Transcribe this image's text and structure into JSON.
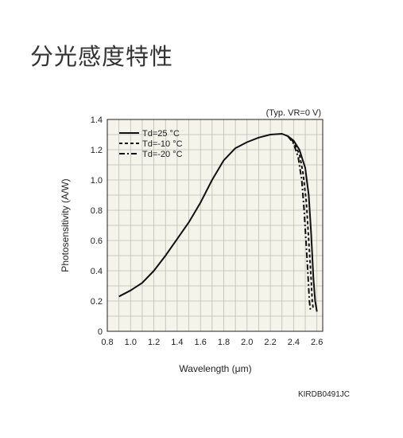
{
  "page": {
    "title": "分光感度特性"
  },
  "chart_data": {
    "type": "line",
    "title": "",
    "condition_note": "(Typ. VR=0 V)",
    "xlabel": "Wavelength (μm)",
    "ylabel": "Photosensitivity (A/W)",
    "xlim": [
      0.8,
      2.65
    ],
    "ylim": [
      0,
      1.4
    ],
    "x_ticks": [
      "0.8",
      "1.0",
      "1.2",
      "1.4",
      "1.6",
      "1.8",
      "2.0",
      "2.2",
      "2.4",
      "2.6"
    ],
    "x_tick_values": [
      0.8,
      1.0,
      1.2,
      1.4,
      1.6,
      1.8,
      2.0,
      2.2,
      2.4,
      2.6
    ],
    "y_ticks": [
      "0",
      "0.2",
      "0.4",
      "0.6",
      "0.8",
      "1.0",
      "1.2",
      "1.4"
    ],
    "y_tick_values": [
      0,
      0.2,
      0.4,
      0.6,
      0.8,
      1.0,
      1.2,
      1.4
    ],
    "x_minor_step": 0.1,
    "y_minor_step": 0.1,
    "grid": true,
    "legend_position": "top-left",
    "series": [
      {
        "name": "Td=25 °C",
        "style": "solid",
        "points": [
          [
            0.9,
            0.23
          ],
          [
            1.0,
            0.27
          ],
          [
            1.1,
            0.32
          ],
          [
            1.2,
            0.4
          ],
          [
            1.3,
            0.5
          ],
          [
            1.4,
            0.61
          ],
          [
            1.5,
            0.72
          ],
          [
            1.6,
            0.85
          ],
          [
            1.7,
            1.0
          ],
          [
            1.8,
            1.13
          ],
          [
            1.9,
            1.21
          ],
          [
            2.0,
            1.25
          ],
          [
            2.1,
            1.28
          ],
          [
            2.2,
            1.3
          ],
          [
            2.3,
            1.305
          ],
          [
            2.35,
            1.29
          ],
          [
            2.4,
            1.26
          ],
          [
            2.45,
            1.2
          ],
          [
            2.5,
            1.08
          ],
          [
            2.53,
            0.9
          ],
          [
            2.55,
            0.65
          ],
          [
            2.57,
            0.35
          ],
          [
            2.585,
            0.2
          ],
          [
            2.6,
            0.13
          ]
        ]
      },
      {
        "name": "Td=-10 °C",
        "style": "dashed",
        "points": [
          [
            2.35,
            1.29
          ],
          [
            2.4,
            1.25
          ],
          [
            2.45,
            1.17
          ],
          [
            2.48,
            1.05
          ],
          [
            2.51,
            0.85
          ],
          [
            2.53,
            0.6
          ],
          [
            2.55,
            0.35
          ],
          [
            2.56,
            0.2
          ],
          [
            2.57,
            0.14
          ]
        ]
      },
      {
        "name": "Td=-20 °C",
        "style": "dash-dot",
        "points": [
          [
            2.35,
            1.29
          ],
          [
            2.4,
            1.24
          ],
          [
            2.44,
            1.15
          ],
          [
            2.47,
            1.0
          ],
          [
            2.49,
            0.8
          ],
          [
            2.51,
            0.55
          ],
          [
            2.525,
            0.35
          ],
          [
            2.535,
            0.2
          ],
          [
            2.545,
            0.14
          ]
        ]
      }
    ],
    "code": "KIRDB0491JC"
  },
  "colors": {
    "plot_bg": "#f5f4ea",
    "grid": "#bdbdb6",
    "line": "#111111",
    "axis_text": "#222222"
  }
}
